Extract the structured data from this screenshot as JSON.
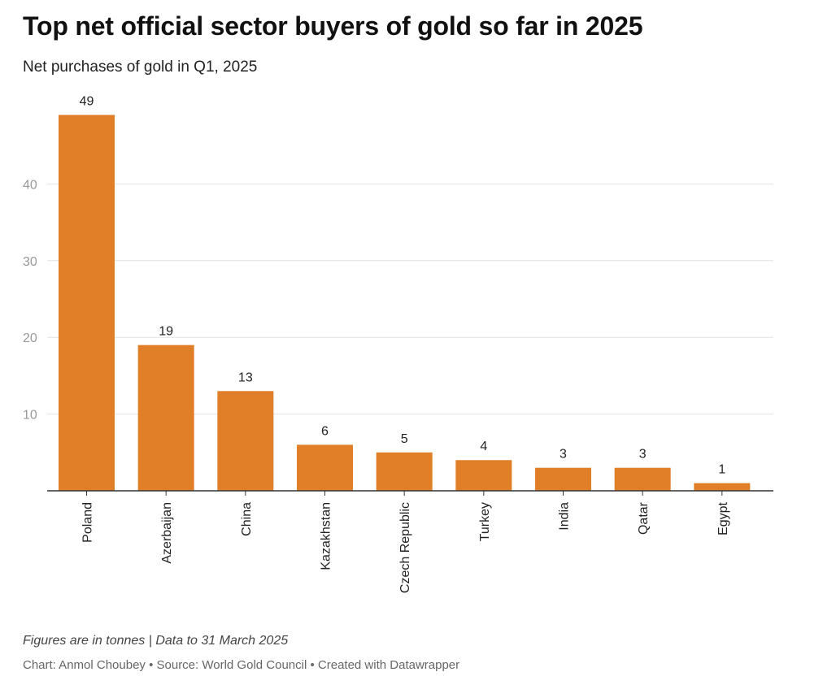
{
  "chart_data": {
    "type": "bar",
    "title": "Top net official sector buyers of gold so far in 2025",
    "subtitle": "Net purchases of gold in Q1, 2025",
    "categories": [
      "Poland",
      "Azerbaijan",
      "China",
      "Kazakhstan",
      "Czech Republic",
      "Turkey",
      "India",
      "Qatar",
      "Egypt"
    ],
    "values": [
      49,
      19,
      13,
      6,
      5,
      4,
      3,
      3,
      1
    ],
    "data_labels": [
      "49",
      "19",
      "13",
      "6",
      "5",
      "4",
      "3",
      "3",
      "1"
    ],
    "yticks": [
      10,
      20,
      30,
      40
    ],
    "ytick_labels": [
      "10",
      "20",
      "30",
      "40"
    ],
    "ylim": [
      0,
      50
    ],
    "xlabel": "",
    "ylabel": "",
    "grid": true,
    "bar_color": "#e07f27"
  },
  "footer": {
    "note": "Figures are in tonnes | Data to 31 March 2025",
    "credit": "Chart: Anmol Choubey • Source: World Gold Council • Created with Datawrapper"
  }
}
